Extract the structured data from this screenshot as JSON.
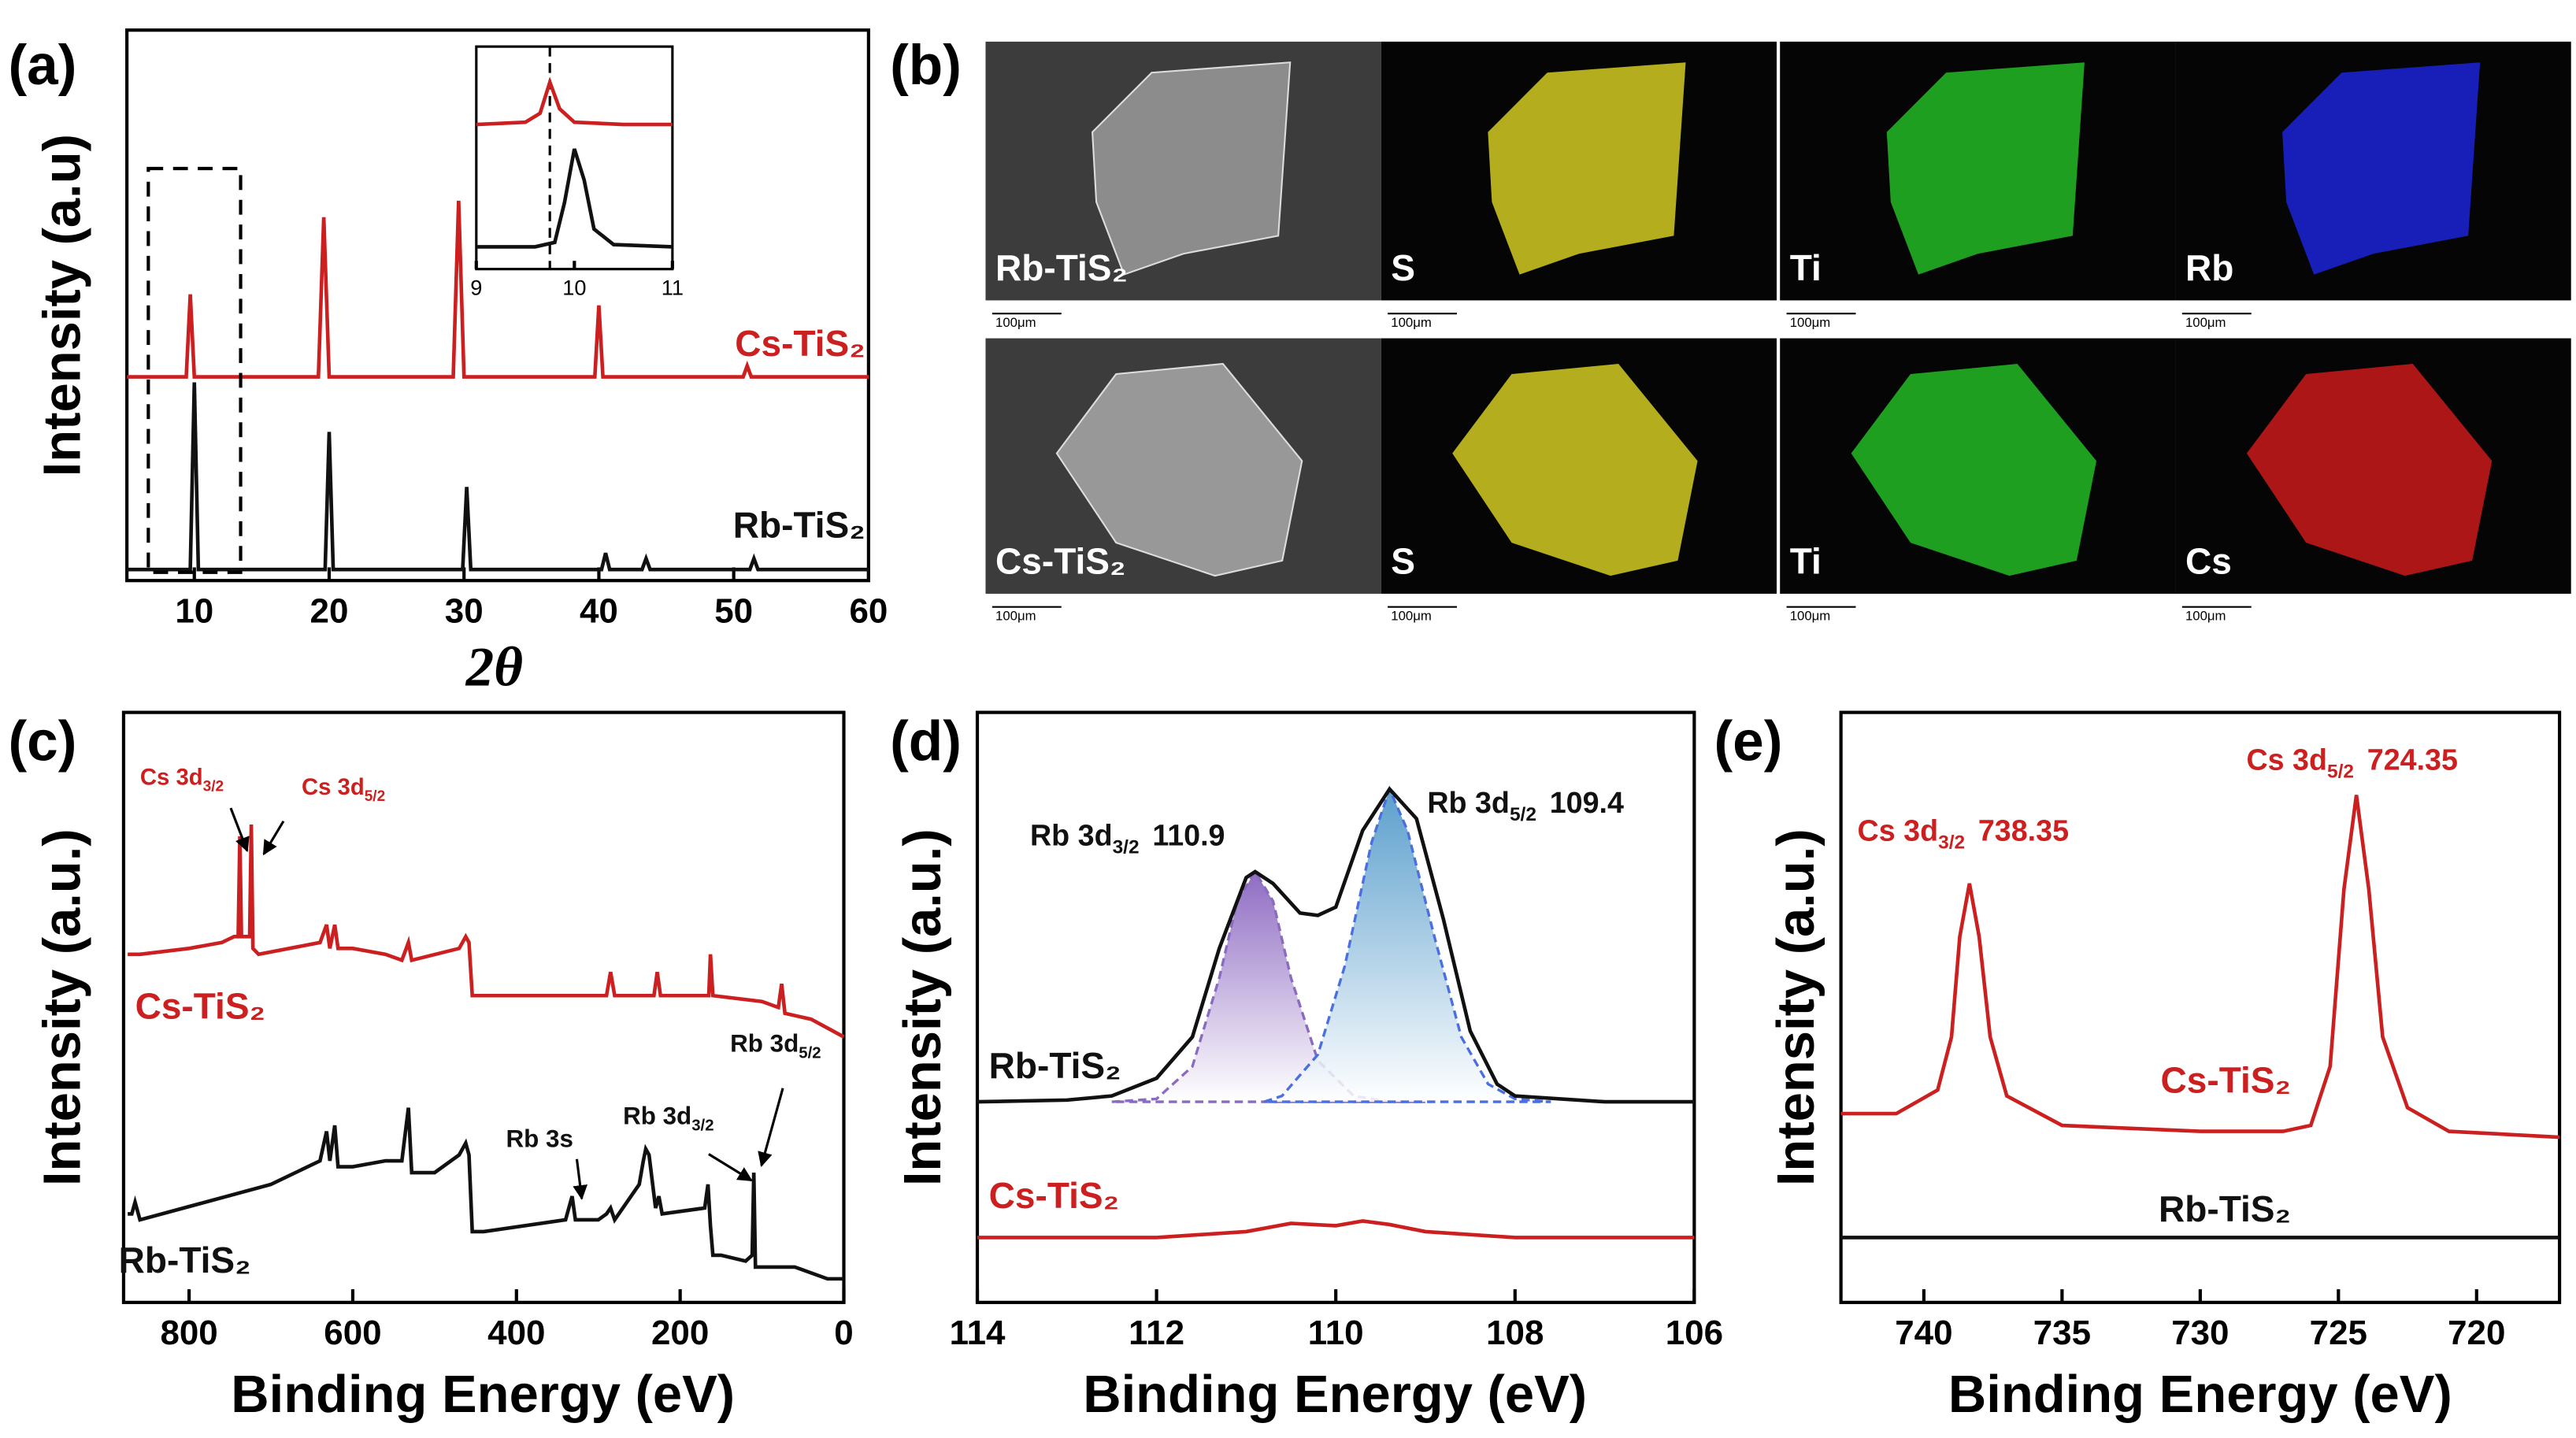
{
  "chart_data": [
    {
      "type": "line",
      "panel_label": "(a)",
      "x_label": "2θ",
      "y_label": "Intensity (a.u)",
      "xlim": [
        5,
        60
      ],
      "xticks": [
        10,
        20,
        30,
        40,
        50,
        60
      ],
      "ylim": [
        0,
        100
      ],
      "series": [
        {
          "name": "Cs-TiS₂",
          "color": "#cc1f1f",
          "x": [
            5,
            9.4,
            9.7,
            10.0,
            19.2,
            19.6,
            20.0,
            29.2,
            29.6,
            30.0,
            39.7,
            40.0,
            40.3,
            50.7,
            51,
            51.3,
            60
          ],
          "values": [
            37,
            37,
            52,
            37,
            37,
            66,
            37,
            37,
            69,
            37,
            37,
            50,
            37,
            37,
            39,
            37,
            37
          ]
        },
        {
          "name": "Rb-TiS₂",
          "color": "#111111",
          "x": [
            5,
            9.7,
            10.0,
            10.3,
            19.7,
            20.0,
            20.3,
            29.9,
            30.2,
            30.5,
            40.2,
            40.5,
            40.8,
            43.2,
            43.5,
            43.8,
            51.2,
            51.5,
            51.8,
            60
          ],
          "values": [
            2,
            2,
            36,
            2,
            2,
            27,
            2,
            2,
            17,
            2,
            2,
            5,
            2,
            2,
            4,
            2,
            2,
            4,
            2,
            2
          ]
        }
      ]
    },
    {
      "type": "line",
      "xlim": [
        9,
        11
      ],
      "xticks": [
        9,
        10,
        11
      ],
      "ylim": [
        0,
        100
      ],
      "vline": 9.75,
      "series": [
        {
          "color": "#cc1f1f",
          "x": [
            9,
            9.5,
            9.65,
            9.75,
            9.85,
            10,
            10.5,
            11
          ],
          "values": [
            65,
            66,
            70,
            84,
            72,
            66,
            65,
            65
          ]
        },
        {
          "color": "#111111",
          "x": [
            9,
            9.6,
            9.8,
            9.9,
            10.0,
            10.1,
            10.2,
            10.4,
            11
          ],
          "values": [
            10,
            10,
            12,
            30,
            54,
            40,
            18,
            11,
            10
          ]
        }
      ]
    },
    {
      "type": "line",
      "panel_label": "(c)",
      "x_label": "Binding Energy (eV)",
      "y_label": "Intensity (a.u.)",
      "xlim": [
        880,
        0
      ],
      "xticks": [
        800,
        600,
        400,
        200,
        0
      ],
      "ylim": [
        0,
        100
      ],
      "series": [
        {
          "name": "Cs-TiS₂",
          "color": "#cc1f1f",
          "x": [
            875,
            860,
            800,
            760,
            745,
            740,
            738,
            736,
            730,
            726,
            724,
            722,
            715,
            640,
            632,
            628,
            622,
            618,
            600,
            560,
            540,
            532,
            528,
            470,
            462,
            458,
            454,
            440,
            300,
            290,
            285,
            280,
            240,
            232,
            228,
            224,
            170,
            165,
            163,
            160,
            100,
            80,
            76,
            72,
            40,
            0
          ],
          "values": [
            59,
            59,
            60,
            61,
            62,
            62,
            79,
            62,
            62,
            62,
            81,
            60,
            59,
            61,
            64,
            60,
            64,
            60,
            60,
            59,
            58,
            61,
            58,
            60,
            62,
            61,
            52,
            52,
            52,
            52,
            56,
            52,
            52,
            52,
            56,
            52,
            52,
            52,
            59,
            52,
            51,
            50,
            54,
            49,
            48,
            45
          ]
        },
        {
          "name": "Rb-TiS₂",
          "color": "#111111",
          "x": [
            875,
            870,
            866,
            860,
            700,
            640,
            632,
            628,
            622,
            618,
            600,
            560,
            540,
            532,
            528,
            500,
            470,
            462,
            458,
            454,
            440,
            340,
            332,
            328,
            300,
            290,
            285,
            280,
            250,
            245,
            242,
            238,
            230,
            226,
            222,
            170,
            166,
            163,
            160,
            150,
            120,
            112,
            110,
            108,
            100,
            60,
            40,
            20,
            0
          ],
          "values": [
            15,
            15,
            17,
            14,
            20,
            24,
            29,
            24,
            30,
            23,
            23,
            24,
            24,
            33,
            22,
            22,
            25,
            27,
            25,
            12,
            12,
            14,
            18,
            14,
            14,
            15,
            16,
            14,
            20,
            24,
            26,
            25,
            16,
            18,
            15,
            16,
            20,
            13,
            8,
            8,
            7,
            8,
            22,
            6,
            6,
            6,
            5,
            4,
            4
          ]
        }
      ],
      "annotations": [
        {
          "text": "Cs 3d",
          "sub": "3/2",
          "color": "#cc1f1f"
        },
        {
          "text": "Cs 3d",
          "sub": "5/2",
          "color": "#cc1f1f"
        },
        {
          "text": "Rb 3s",
          "color": "#111111"
        },
        {
          "text": "Rb 3d",
          "sub": "3/2",
          "color": "#111111"
        },
        {
          "text": "Rb 3d",
          "sub": "5/2",
          "color": "#111111"
        }
      ]
    },
    {
      "type": "line",
      "panel_label": "(d)",
      "x_label": "Binding Energy (eV)",
      "y_label": "Intensity (a.u.)",
      "xlim": [
        114,
        106
      ],
      "xticks": [
        114,
        112,
        110,
        108,
        106
      ],
      "ylim": [
        0,
        100
      ],
      "series": [
        {
          "color": "#8a6bbf",
          "fill": "purple",
          "dash": true,
          "x": [
            112.5,
            112,
            111.6,
            111.3,
            111.1,
            110.9,
            110.7,
            110.5,
            110.2,
            109.8,
            109.4,
            109
          ],
          "values": [
            34,
            34.5,
            40,
            55,
            68,
            73,
            68,
            55,
            41,
            35,
            34,
            34
          ]
        },
        {
          "color": "#4a6fe0",
          "fill": "blue",
          "dash": true,
          "x": [
            110.8,
            110.6,
            110.2,
            109.9,
            109.6,
            109.4,
            109.2,
            108.9,
            108.6,
            108.3,
            108,
            107.6
          ],
          "values": [
            34,
            35,
            42,
            57,
            78,
            87,
            80,
            62,
            45,
            37,
            34.5,
            34
          ]
        },
        {
          "name": "Rb-TiS₂",
          "color": "#111111",
          "x": [
            114,
            113,
            112.5,
            112,
            111.6,
            111.3,
            111,
            110.9,
            110.7,
            110.4,
            110.2,
            110,
            109.7,
            109.4,
            109.1,
            108.8,
            108.5,
            108.2,
            108,
            107,
            106
          ],
          "values": [
            34,
            34.3,
            35,
            38,
            45,
            60,
            72,
            73,
            71,
            66,
            65.6,
            67,
            80,
            87,
            82,
            65,
            46,
            37,
            35,
            34,
            34
          ]
        },
        {
          "name": "Cs-TiS₂",
          "color": "#cc1f1f",
          "x": [
            114,
            112,
            111,
            110.5,
            110,
            109.7,
            109.4,
            109,
            108,
            106
          ],
          "values": [
            11,
            11,
            12,
            13.4,
            13,
            13.8,
            13.2,
            12,
            11,
            11
          ]
        }
      ],
      "annotations": [
        {
          "text": "Rb 3d",
          "sub": "3/2",
          "value": 110.9,
          "color": "#111111"
        },
        {
          "text": "Rb 3d",
          "sub": "5/2",
          "value": 109.4,
          "color": "#111111"
        }
      ]
    },
    {
      "type": "line",
      "panel_label": "(e)",
      "x_label": "Binding Energy (eV)",
      "y_label": "Intensity (a.u.)",
      "xlim": [
        743,
        717
      ],
      "xticks": [
        740,
        735,
        730,
        725,
        720
      ],
      "ylim": [
        0,
        100
      ],
      "series": [
        {
          "name": "Cs-TiS₂",
          "color": "#cc1f1f",
          "x": [
            743,
            741,
            739.5,
            739,
            738.7,
            738.35,
            738,
            737.6,
            737,
            735,
            730,
            727,
            726,
            725.3,
            724.8,
            724.35,
            723.9,
            723.4,
            722.5,
            721,
            717
          ],
          "values": [
            32,
            32,
            36,
            45,
            62,
            71,
            62,
            45,
            35,
            30,
            29,
            29,
            30,
            40,
            70,
            86,
            70,
            45,
            33,
            29,
            28
          ]
        },
        {
          "name": "Rb-TiS₂",
          "color": "#111111",
          "x": [
            743,
            730,
            717
          ],
          "values": [
            11,
            11,
            11
          ]
        }
      ],
      "annotations": [
        {
          "text": "Cs 3d",
          "sub": "3/2",
          "value": 738.35,
          "color": "#cc1f1f"
        },
        {
          "text": "Cs 3d",
          "sub": "5/2",
          "value": 724.35,
          "color": "#cc1f1f"
        }
      ]
    }
  ],
  "eds_panel": {
    "panel_label": "(b)",
    "scale_bar": "100μm",
    "rows": [
      {
        "labels": [
          "Rb-TiS₂",
          "S",
          "Ti",
          "Rb"
        ],
        "colors": [
          "#9a9a9a",
          "#c8c020",
          "#22b022",
          "#1a22cc"
        ]
      },
      {
        "labels": [
          "Cs-TiS₂",
          "S",
          "Ti",
          "Cs"
        ],
        "colors": [
          "#a8a8a8",
          "#c8c020",
          "#22b022",
          "#c01818"
        ]
      }
    ]
  }
}
